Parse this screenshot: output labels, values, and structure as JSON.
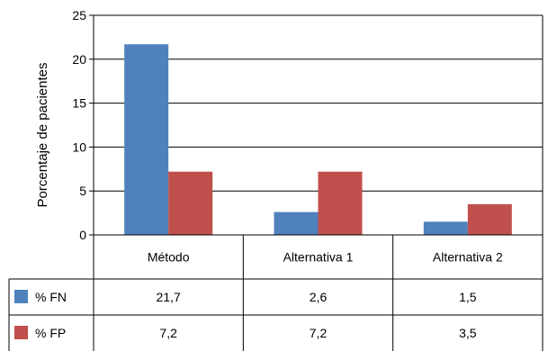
{
  "chart_data": {
    "type": "bar",
    "ylabel": "Porcentaje de pacientes",
    "ylim": [
      0,
      25
    ],
    "yticks": [
      0,
      5,
      10,
      15,
      20,
      25
    ],
    "grid": true,
    "legend": "table-rows",
    "categories": [
      "Método",
      "Alternativa 1",
      "Alternativa 2"
    ],
    "series": [
      {
        "name": "% FN",
        "color": "#4f81bd",
        "values": [
          21.7,
          2.6,
          1.5
        ],
        "labels": [
          "21,7",
          "2,6",
          "1,5"
        ]
      },
      {
        "name": "% FP",
        "color": "#c0504d",
        "values": [
          7.2,
          7.2,
          3.5
        ],
        "labels": [
          "7,2",
          "7,2",
          "3,5"
        ]
      }
    ]
  }
}
